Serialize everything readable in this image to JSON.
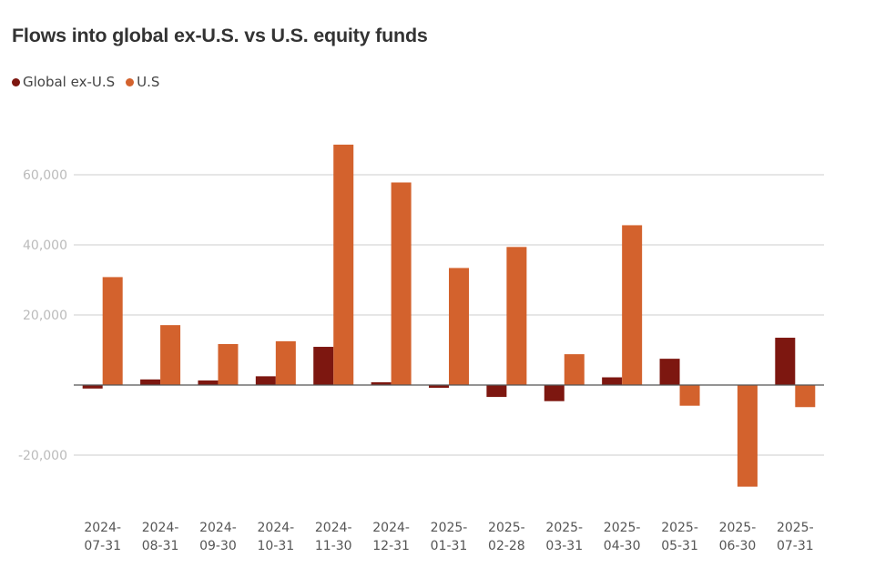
{
  "chart_data": {
    "type": "bar",
    "title": "Flows into global ex-U.S. vs U.S. equity funds",
    "xlabel": "",
    "ylabel": "",
    "ylim": [
      -30000,
      70000
    ],
    "yticks": [
      -20000,
      0,
      20000,
      40000,
      60000
    ],
    "ytick_labels": [
      "-20,000",
      "",
      "20,000",
      "40,000",
      "60,000"
    ],
    "grid": true,
    "legend_position": "top-left",
    "categories": [
      [
        "2024-",
        "07-31"
      ],
      [
        "2024-",
        "08-31"
      ],
      [
        "2024-",
        "09-30"
      ],
      [
        "2024-",
        "10-31"
      ],
      [
        "2024-",
        "11-30"
      ],
      [
        "2024-",
        "12-31"
      ],
      [
        "2025-",
        "01-31"
      ],
      [
        "2025-",
        "02-28"
      ],
      [
        "2025-",
        "03-31"
      ],
      [
        "2025-",
        "04-30"
      ],
      [
        "2025-",
        "05-31"
      ],
      [
        "2025-",
        "06-30"
      ],
      [
        "2025-",
        "07-31"
      ]
    ],
    "series": [
      {
        "name": "Global ex-U.S",
        "color": "#7d1710",
        "values": [
          -1000,
          1600,
          1300,
          2500,
          10900,
          800,
          -800,
          -3400,
          -4600,
          2200,
          7500,
          0,
          13500
        ]
      },
      {
        "name": "U.S",
        "color": "#d3622d",
        "values": [
          30800,
          17100,
          11700,
          12500,
          68600,
          57800,
          33400,
          39400,
          8800,
          45600,
          -5900,
          -29000,
          -6300
        ]
      }
    ]
  }
}
